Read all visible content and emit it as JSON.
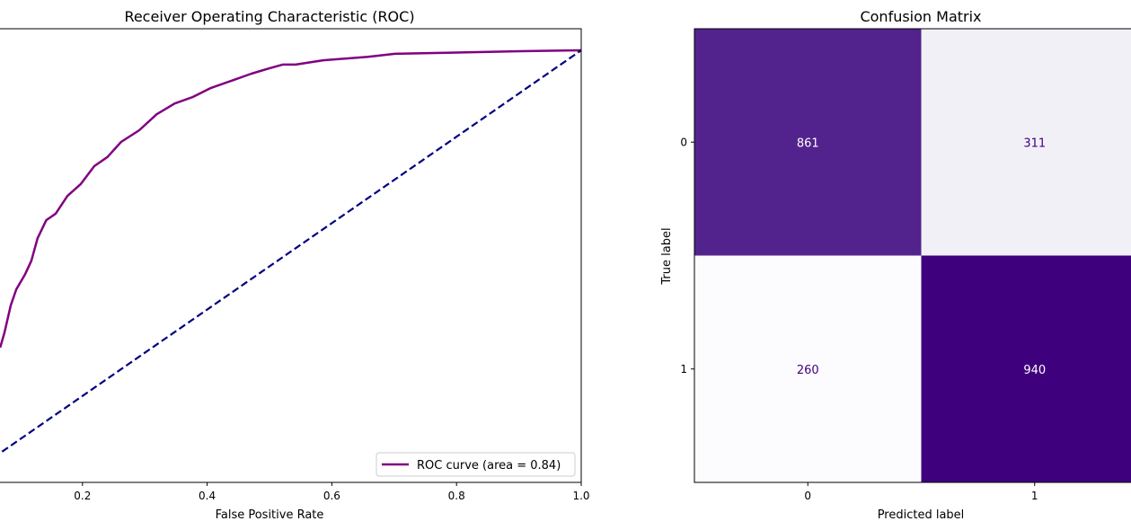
{
  "chart_data": [
    {
      "type": "line",
      "title": "Receiver Operating Characteristic (ROC)",
      "xlabel": "False Positive Rate",
      "ylabel": "",
      "xlim": [
        0.0,
        1.0
      ],
      "ylim": [
        0.0,
        1.05
      ],
      "x_ticks": [
        "0.2",
        "0.4",
        "0.6",
        "0.8",
        "1.0"
      ],
      "grid": false,
      "legend_position": "lower-right",
      "series": [
        {
          "name": "ROC curve (area = 0.84)",
          "color": "#800080",
          "style": "solid",
          "x": [
            0.068,
            0.075,
            0.085,
            0.094,
            0.108,
            0.118,
            0.128,
            0.142,
            0.157,
            0.176,
            0.197,
            0.219,
            0.24,
            0.262,
            0.291,
            0.319,
            0.348,
            0.377,
            0.406,
            0.442,
            0.471,
            0.499,
            0.521,
            0.542,
            0.586,
            0.658,
            0.701,
            0.902,
            1.0
          ],
          "y": [
            0.312,
            0.347,
            0.41,
            0.447,
            0.482,
            0.513,
            0.565,
            0.607,
            0.622,
            0.663,
            0.69,
            0.732,
            0.753,
            0.788,
            0.815,
            0.852,
            0.877,
            0.892,
            0.913,
            0.931,
            0.946,
            0.958,
            0.967,
            0.967,
            0.977,
            0.985,
            0.992,
            0.998,
            1.0
          ]
        },
        {
          "color": "#000080",
          "style": "dashed",
          "x": [
            0,
            1
          ],
          "y": [
            0,
            1
          ]
        }
      ]
    },
    {
      "type": "heatmap",
      "title": "Confusion Matrix",
      "xlabel": "Predicted label",
      "ylabel": "True label",
      "x_ticks": [
        "0",
        "1"
      ],
      "y_ticks": [
        "0",
        "1"
      ],
      "colormap": "Purples",
      "values": [
        [
          861,
          311
        ],
        [
          260,
          940
        ]
      ],
      "cell_colors": [
        [
          "#52238d",
          "#f2f0f7"
        ],
        [
          "#fcfbfd",
          "#3f007d"
        ]
      ],
      "text_colors": [
        [
          "#ffffff",
          "#3f007d"
        ],
        [
          "#3f007d",
          "#ffffff"
        ]
      ]
    }
  ]
}
